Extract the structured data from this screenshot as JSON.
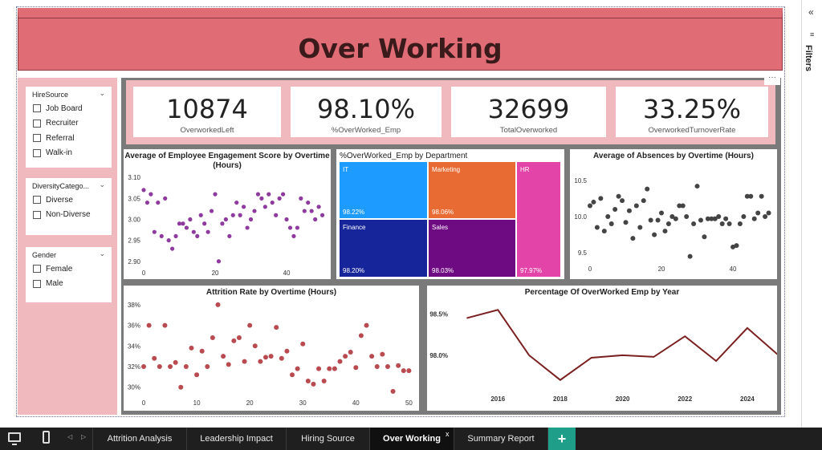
{
  "report_title": "Over Working",
  "kpis": [
    {
      "value": "10874",
      "label": "OverworkedLeft"
    },
    {
      "value": "98.10%",
      "label": "%OverWorked_Emp"
    },
    {
      "value": "32699",
      "label": "TotalOverworked"
    },
    {
      "value": "33.25%",
      "label": "OverworkedTurnoverRate"
    }
  ],
  "more_options": "···",
  "slicers": {
    "hire_source": {
      "title": "HireSource",
      "options": [
        "Job Board",
        "Recruiter",
        "Referral",
        "Walk-in"
      ]
    },
    "diversity": {
      "title": "DiversityCatego...",
      "options": [
        "Diverse",
        "Non-Diverse"
      ]
    },
    "gender": {
      "title": "Gender",
      "options": [
        "Female",
        "Male"
      ]
    }
  },
  "charts": {
    "engagement": {
      "title_line1": "Average of Employee Engagement Score by Overtime",
      "title_line2": "(Hours)"
    },
    "treemap": {
      "title": "%OverWorked_Emp by Department"
    },
    "absences": {
      "title": "Average of Absences by Overtime (Hours)"
    },
    "attrition": {
      "title": "Attrition Rate by Overtime (Hours)"
    },
    "pct_year": {
      "title": "Percentage Of OverWorked Emp by Year"
    }
  },
  "chart_data": [
    {
      "type": "scatter",
      "title": "Average of Employee Engagement Score by Overtime (Hours)",
      "xticks": [
        "0",
        "20",
        "40"
      ],
      "yticks": [
        "3.10",
        "3.05",
        "3.00",
        "2.95",
        "2.90"
      ],
      "xlim": [
        0,
        51
      ],
      "ylim": [
        2.89,
        3.11
      ],
      "color": "#8e3a9e",
      "points": [
        [
          0,
          3.07
        ],
        [
          1,
          3.04
        ],
        [
          2,
          3.06
        ],
        [
          3,
          2.97
        ],
        [
          4,
          3.04
        ],
        [
          5,
          2.96
        ],
        [
          6,
          3.05
        ],
        [
          7,
          2.95
        ],
        [
          8,
          2.93
        ],
        [
          9,
          2.96
        ],
        [
          10,
          2.99
        ],
        [
          11,
          2.99
        ],
        [
          12,
          2.98
        ],
        [
          13,
          3.0
        ],
        [
          14,
          2.97
        ],
        [
          15,
          2.96
        ],
        [
          16,
          3.01
        ],
        [
          17,
          2.99
        ],
        [
          18,
          2.97
        ],
        [
          19,
          3.02
        ],
        [
          20,
          3.06
        ],
        [
          21,
          2.9
        ],
        [
          22,
          2.99
        ],
        [
          23,
          3.0
        ],
        [
          24,
          2.96
        ],
        [
          25,
          3.01
        ],
        [
          26,
          3.04
        ],
        [
          27,
          3.01
        ],
        [
          28,
          3.03
        ],
        [
          29,
          2.98
        ],
        [
          30,
          3.0
        ],
        [
          31,
          3.02
        ],
        [
          32,
          3.06
        ],
        [
          33,
          3.05
        ],
        [
          34,
          3.03
        ],
        [
          35,
          3.06
        ],
        [
          36,
          3.04
        ],
        [
          37,
          3.01
        ],
        [
          38,
          3.05
        ],
        [
          39,
          3.06
        ],
        [
          40,
          3.0
        ],
        [
          41,
          2.98
        ],
        [
          42,
          2.96
        ],
        [
          43,
          2.98
        ],
        [
          44,
          3.05
        ],
        [
          45,
          3.02
        ],
        [
          46,
          3.04
        ],
        [
          47,
          3.02
        ],
        [
          48,
          3.0
        ],
        [
          49,
          3.03
        ],
        [
          50,
          3.01
        ]
      ]
    },
    {
      "type": "heatmap",
      "title": "%OverWorked_Emp by Department",
      "tiles": [
        {
          "name": "IT",
          "value": "98.22%",
          "color": "#1e9bff"
        },
        {
          "name": "Marketing",
          "value": "98.06%",
          "color": "#e86b33"
        },
        {
          "name": "HR",
          "value": "97.97%",
          "color": "#e344a7"
        },
        {
          "name": "Finance",
          "value": "98.20%",
          "color": "#16259a"
        },
        {
          "name": "Sales",
          "value": "98.03%",
          "color": "#6e0a82"
        }
      ]
    },
    {
      "type": "scatter",
      "title": "Average of Absences by Overtime (Hours)",
      "xticks": [
        "0",
        "20",
        "40"
      ],
      "yticks": [
        "10.5",
        "10.0",
        "9.5"
      ],
      "xlim": [
        0,
        51
      ],
      "ylim": [
        9.38,
        10.62
      ],
      "color": "#444444",
      "points": [
        [
          0,
          10.15
        ],
        [
          1,
          10.2
        ],
        [
          2,
          9.85
        ],
        [
          3,
          10.25
        ],
        [
          4,
          9.8
        ],
        [
          5,
          10.0
        ],
        [
          6,
          9.9
        ],
        [
          7,
          10.1
        ],
        [
          8,
          10.28
        ],
        [
          9,
          10.22
        ],
        [
          10,
          9.92
        ],
        [
          11,
          10.08
        ],
        [
          12,
          9.7
        ],
        [
          13,
          10.15
        ],
        [
          14,
          9.85
        ],
        [
          15,
          10.22
        ],
        [
          16,
          10.38
        ],
        [
          17,
          9.95
        ],
        [
          18,
          9.75
        ],
        [
          19,
          9.95
        ],
        [
          20,
          10.05
        ],
        [
          21,
          9.8
        ],
        [
          22,
          9.9
        ],
        [
          23,
          10.0
        ],
        [
          24,
          9.97
        ],
        [
          25,
          10.15
        ],
        [
          26,
          10.15
        ],
        [
          27,
          10.0
        ],
        [
          28,
          9.45
        ],
        [
          29,
          9.9
        ],
        [
          30,
          10.42
        ],
        [
          31,
          9.95
        ],
        [
          32,
          9.72
        ],
        [
          33,
          9.97
        ],
        [
          34,
          9.97
        ],
        [
          35,
          9.97
        ],
        [
          36,
          10.0
        ],
        [
          37,
          9.9
        ],
        [
          38,
          9.97
        ],
        [
          39,
          9.9
        ],
        [
          40,
          9.58
        ],
        [
          41,
          9.6
        ],
        [
          42,
          9.9
        ],
        [
          43,
          10.0
        ],
        [
          44,
          10.28
        ],
        [
          45,
          10.28
        ],
        [
          46,
          9.97
        ],
        [
          47,
          10.05
        ],
        [
          48,
          10.28
        ],
        [
          49,
          10.0
        ],
        [
          50,
          10.05
        ]
      ]
    },
    {
      "type": "scatter",
      "title": "Attrition Rate by Overtime (Hours)",
      "xticks": [
        "0",
        "10",
        "20",
        "30",
        "40",
        "50"
      ],
      "yticks": [
        "38%",
        "36%",
        "34%",
        "32%",
        "30%"
      ],
      "xlim": [
        0,
        51
      ],
      "ylim": [
        29.2,
        38.3
      ],
      "color": "#b84a50",
      "points": [
        [
          0,
          32.0
        ],
        [
          1,
          36.0
        ],
        [
          2,
          32.8
        ],
        [
          3,
          32.0
        ],
        [
          4,
          36.0
        ],
        [
          5,
          32.0
        ],
        [
          6,
          32.4
        ],
        [
          7,
          30.0
        ],
        [
          8,
          32.0
        ],
        [
          9,
          33.8
        ],
        [
          10,
          31.2
        ],
        [
          11,
          33.5
        ],
        [
          12,
          32.0
        ],
        [
          13,
          34.8
        ],
        [
          14,
          38.0
        ],
        [
          15,
          33.0
        ],
        [
          16,
          32.2
        ],
        [
          17,
          34.5
        ],
        [
          18,
          34.8
        ],
        [
          19,
          32.5
        ],
        [
          20,
          36.0
        ],
        [
          21,
          34.0
        ],
        [
          22,
          32.5
        ],
        [
          23,
          32.9
        ],
        [
          24,
          33.0
        ],
        [
          25,
          35.8
        ],
        [
          26,
          32.8
        ],
        [
          27,
          33.5
        ],
        [
          28,
          31.2
        ],
        [
          29,
          31.8
        ],
        [
          30,
          34.2
        ],
        [
          31,
          30.6
        ],
        [
          32,
          30.3
        ],
        [
          33,
          31.8
        ],
        [
          34,
          30.6
        ],
        [
          35,
          31.8
        ],
        [
          36,
          31.8
        ],
        [
          37,
          32.5
        ],
        [
          38,
          33.0
        ],
        [
          39,
          33.4
        ],
        [
          40,
          31.9
        ],
        [
          41,
          35.0
        ],
        [
          42,
          36.0
        ],
        [
          43,
          33.0
        ],
        [
          44,
          32.0
        ],
        [
          45,
          33.2
        ],
        [
          46,
          32.0
        ],
        [
          47,
          29.6
        ],
        [
          48,
          32.1
        ],
        [
          49,
          31.6
        ],
        [
          50,
          31.6
        ]
      ]
    },
    {
      "type": "line",
      "title": "Percentage Of OverWorked Emp by Year",
      "xticks": [
        "2016",
        "2018",
        "2020",
        "2022",
        "2024"
      ],
      "yticks": [
        "98.5%",
        "98.0%"
      ],
      "xlim": [
        2014.5,
        2024.8
      ],
      "ylim": [
        97.6,
        98.65
      ],
      "color": "#7a2020",
      "series": [
        {
          "x": [
            2015,
            2016,
            2017,
            2018,
            2019,
            2020,
            2021,
            2022,
            2023,
            2024,
            2025
          ],
          "y": [
            98.45,
            98.55,
            98.0,
            97.7,
            97.97,
            98.0,
            97.98,
            98.23,
            97.93,
            98.33,
            98.0
          ]
        }
      ]
    }
  ],
  "filters_pane": {
    "label": "Filters",
    "collapse_icon": "«",
    "funnel_icon": "≡"
  },
  "tabs": [
    "Attrition Analysis",
    "Leadership Impact",
    "Hiring Source",
    "Over Working",
    "Summary Report"
  ],
  "tab_close": "x",
  "add_page": "+",
  "nav_prev": "◁",
  "nav_next": "▷"
}
